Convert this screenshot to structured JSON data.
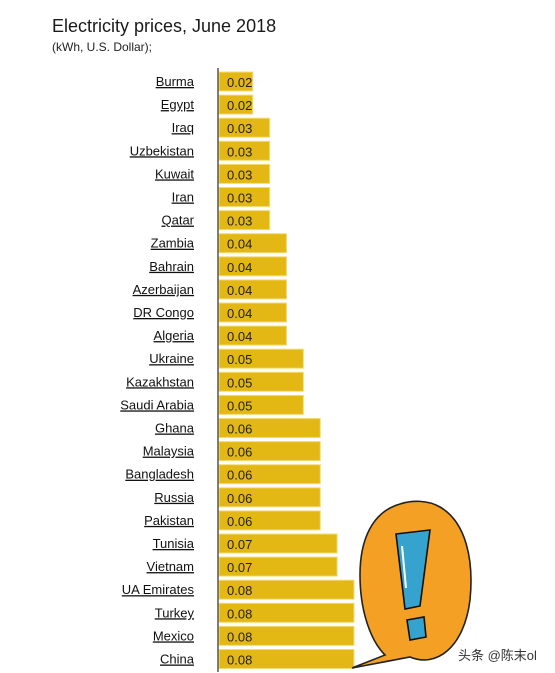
{
  "title": "Electricity prices, June 2018",
  "subtitle": "(kWh, U.S. Dollar);",
  "watermark": "头条 @陈末ol",
  "colors": {
    "bar": "#e3b814",
    "bar_edge": "#f3dc74",
    "axis": "#555555",
    "bubble": "#f3a025",
    "exclamation": "#36a3cf"
  },
  "decoration": {
    "icon": "exclamation-speech-bubble-icon"
  },
  "chart_data": {
    "type": "bar",
    "orientation": "horizontal",
    "categories": [
      "Burma",
      "Egypt",
      "Iraq",
      "Uzbekistan",
      "Kuwait",
      "Iran",
      "Qatar",
      "Zambia",
      "Bahrain",
      "Azerbaijan",
      "DR Congo",
      "Algeria",
      "Ukraine",
      "Kazakhstan",
      "Saudi Arabia",
      "Ghana",
      "Malaysia",
      "Bangladesh",
      "Russia",
      "Pakistan",
      "Tunisia",
      "Vietnam",
      "UA Emirates",
      "Turkey",
      "Mexico",
      "China"
    ],
    "values": [
      0.02,
      0.02,
      0.03,
      0.03,
      0.03,
      0.03,
      0.03,
      0.04,
      0.04,
      0.04,
      0.04,
      0.04,
      0.05,
      0.05,
      0.05,
      0.06,
      0.06,
      0.06,
      0.06,
      0.06,
      0.07,
      0.07,
      0.08,
      0.08,
      0.08,
      0.08
    ],
    "value_labels": [
      "0.02",
      "0.02",
      "0.03",
      "0.03",
      "0.03",
      "0.03",
      "0.03",
      "0.04",
      "0.04",
      "0.04",
      "0.04",
      "0.04",
      "0.05",
      "0.05",
      "0.05",
      "0.06",
      "0.06",
      "0.06",
      "0.06",
      "0.06",
      "0.07",
      "0.07",
      "0.08",
      "0.08",
      "0.08",
      "0.08"
    ],
    "xlim": [
      0,
      0.08
    ],
    "grid": false,
    "legend": "none"
  }
}
